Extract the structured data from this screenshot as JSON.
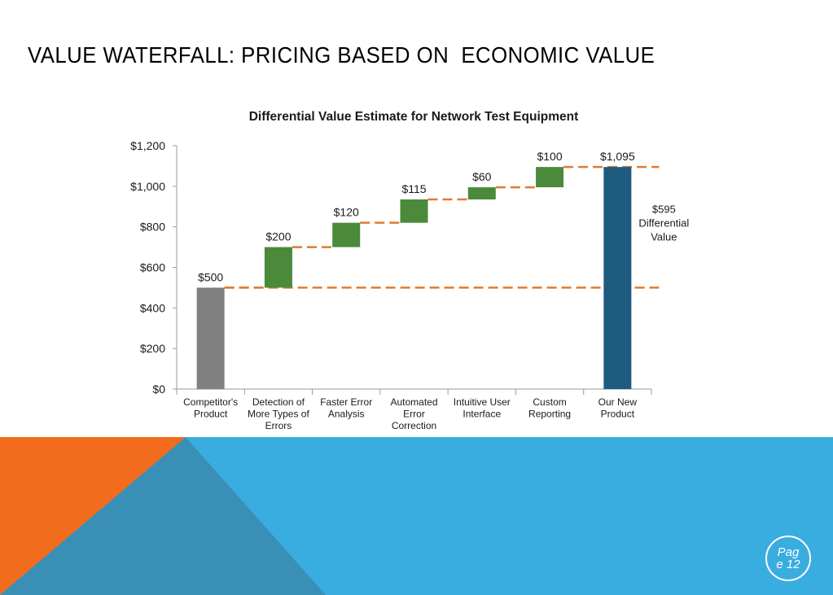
{
  "slide": {
    "title": "VALUE WATERFALL: PRICING BASED ON  ECONOMIC VALUE",
    "page_line1": "Pag",
    "page_line2": "e 12"
  },
  "colors": {
    "base_bar": "#808080",
    "increment_bar": "#4a8a3a",
    "total_bar": "#1f5a80",
    "guide_line": "#e07b2e",
    "footer_orange": "#f26c1d",
    "footer_blue": "#3aade0",
    "footer_teal": "#3a8fb6"
  },
  "chart_data": {
    "type": "bar",
    "subtype": "waterfall",
    "title": "Differential Value Estimate for Network Test Equipment",
    "ylim": [
      0,
      1200
    ],
    "yticks": [
      0,
      200,
      400,
      600,
      800,
      1000,
      1200
    ],
    "ytick_labels": [
      "$0",
      "$200",
      "$400",
      "$600",
      "$800",
      "$1,000",
      "$1,200"
    ],
    "categories": [
      [
        "Competitor's",
        "Product"
      ],
      [
        "Detection of",
        "More Types of",
        "Errors"
      ],
      [
        "Faster Error",
        "Analysis"
      ],
      [
        "Automated",
        "Error",
        "Correction"
      ],
      [
        "Intuitive User",
        "Interface"
      ],
      [
        "Custom",
        "Reporting"
      ],
      [
        "Our New",
        "Product"
      ]
    ],
    "bars": [
      {
        "kind": "base",
        "start": 0,
        "end": 500,
        "label": "$500"
      },
      {
        "kind": "increment",
        "start": 500,
        "end": 700,
        "label": "$200"
      },
      {
        "kind": "increment",
        "start": 700,
        "end": 820,
        "label": "$120"
      },
      {
        "kind": "increment",
        "start": 820,
        "end": 935,
        "label": "$115"
      },
      {
        "kind": "increment",
        "start": 935,
        "end": 995,
        "label": "$60"
      },
      {
        "kind": "increment",
        "start": 995,
        "end": 1095,
        "label": "$100"
      },
      {
        "kind": "total",
        "start": 0,
        "end": 1095,
        "label": "$1,095"
      }
    ],
    "annotation": {
      "lines": [
        "$595",
        "Differential",
        "Value"
      ],
      "from": 500,
      "to": 1095
    },
    "grid": false,
    "legend": "none"
  }
}
